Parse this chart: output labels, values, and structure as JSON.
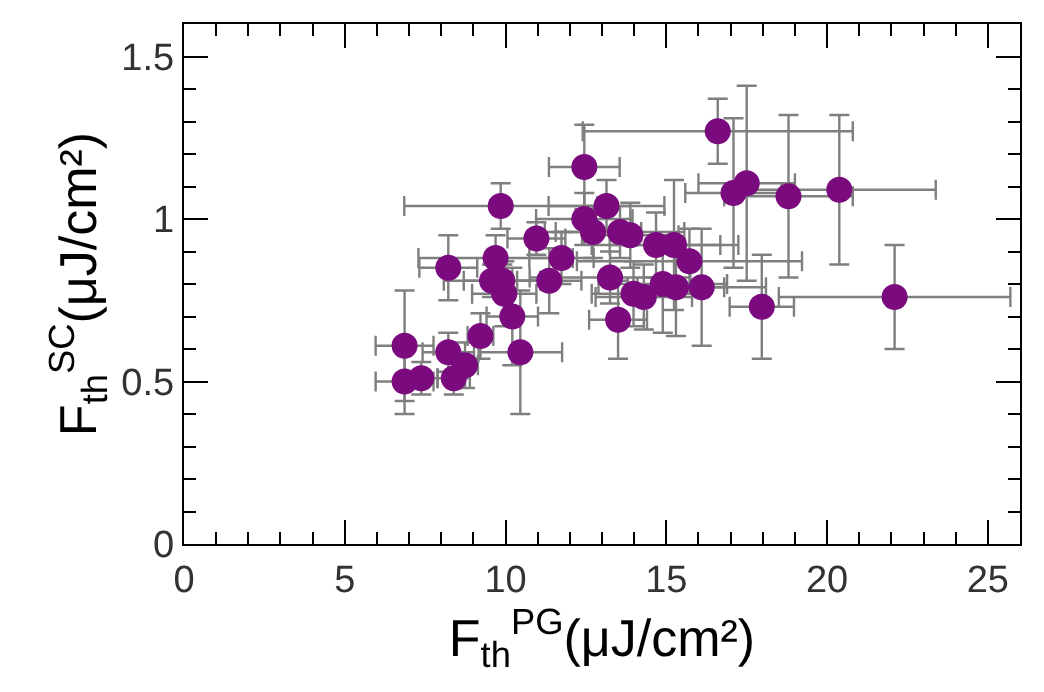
{
  "chart_data": {
    "type": "scatter",
    "xlabel": "F$_{th}$$^{PG}$(μJ/cm²)",
    "ylabel": "F$_{th}$$^{SC}$(μJ/cm²)",
    "x": [
      6.86,
      6.86,
      7.38,
      8.22,
      8.22,
      8.39,
      8.74,
      9.22,
      9.85,
      9.69,
      9.58,
      9.9,
      9.96,
      10.21,
      10.46,
      10.96,
      11.74,
      11.36,
      12.45,
      12.45,
      12.72,
      13.14,
      13.25,
      13.5,
      13.56,
      13.88,
      13.98,
      14.3,
      14.68,
      15.24,
      14.89,
      15.3,
      15.72,
      16.1,
      16.6,
      17.09,
      17.5,
      17.97,
      18.8,
      20.38,
      22.1
    ],
    "series": [
      {
        "color": "#7a0a7e",
        "values": [
          0.61,
          0.5,
          0.51,
          0.85,
          0.59,
          0.51,
          0.55,
          0.64,
          1.04,
          0.88,
          0.81,
          0.81,
          0.77,
          0.7,
          0.59,
          0.94,
          0.88,
          0.81,
          1.16,
          1.0,
          0.96,
          1.04,
          0.82,
          0.69,
          0.96,
          0.95,
          0.77,
          0.76,
          0.92,
          0.92,
          0.8,
          0.79,
          0.87,
          0.79,
          1.27,
          1.08,
          1.11,
          0.73,
          1.07,
          1.09,
          0.76
        ],
        "errors": [
          0.17,
          0.1,
          0.05,
          0.1,
          0.06,
          0.05,
          0.07,
          0.07,
          0.07,
          0.07,
          0.05,
          0.05,
          0.1,
          0.15,
          0.19,
          0.05,
          0.08,
          0.1,
          0.13,
          0.08,
          0.08,
          0.08,
          0.08,
          0.12,
          0.08,
          0.1,
          0.1,
          0.1,
          0.1,
          0.2,
          0.15,
          0.15,
          0.1,
          0.18,
          0.1,
          0.23,
          0.3,
          0.16,
          0.25,
          0.23,
          0.16
        ],
        "xerrors": [
          0.9,
          0.9,
          0.5,
          0.9,
          0.8,
          0.5,
          0.4,
          0.4,
          3.0,
          2.4,
          1.5,
          1.2,
          1.0,
          0.8,
          1.3,
          0.9,
          1.0,
          1.0,
          1.1,
          1.5,
          1.5,
          1.8,
          2.5,
          0.9,
          2.0,
          1.5,
          1.3,
          1.5,
          2.0,
          2.0,
          2.0,
          1.5,
          3.5,
          2.0,
          4.2,
          1.5,
          1.5,
          1.0,
          2.0,
          3.0,
          3.6
        ]
      }
    ],
    "xlim": [
      0,
      26
    ],
    "ylim": [
      0,
      1.6
    ],
    "xticks": [
      0,
      {
        "value": 1,
        "label": null
      },
      {
        "value": 2,
        "label": null
      },
      {
        "value": 3,
        "label": null
      },
      {
        "value": 4,
        "label": null
      },
      5,
      {
        "value": 6,
        "label": null
      },
      {
        "value": 7,
        "label": null
      },
      {
        "value": 8,
        "label": null
      },
      {
        "value": 9,
        "label": null
      },
      10,
      {
        "value": 11,
        "label": null
      },
      {
        "value": 12,
        "label": null
      },
      {
        "value": 13,
        "label": null
      },
      {
        "value": 14,
        "label": null
      },
      15,
      {
        "value": 16,
        "label": null
      },
      {
        "value": 17,
        "label": null
      },
      {
        "value": 18,
        "label": null
      },
      {
        "value": 19,
        "label": null
      },
      20,
      {
        "value": 21,
        "label": null
      },
      {
        "value": 22,
        "label": null
      },
      {
        "value": 23,
        "label": null
      },
      {
        "value": 24,
        "label": null
      },
      25
    ],
    "yticks": [
      0,
      {
        "value": 0.1,
        "label": null
      },
      {
        "value": 0.2,
        "label": null
      },
      {
        "value": 0.3,
        "label": null
      },
      {
        "value": 0.4,
        "label": null
      },
      0.5,
      {
        "value": 0.6,
        "label": null
      },
      {
        "value": 0.7,
        "label": null
      },
      {
        "value": 0.8,
        "label": null
      },
      {
        "value": 0.9,
        "label": null
      },
      1,
      {
        "value": 1.1,
        "label": null
      },
      {
        "value": 1.2,
        "label": null
      },
      {
        "value": 1.3,
        "label": null
      },
      {
        "value": 1.4,
        "label": null
      },
      1.5
    ],
    "marker": "circle"
  }
}
